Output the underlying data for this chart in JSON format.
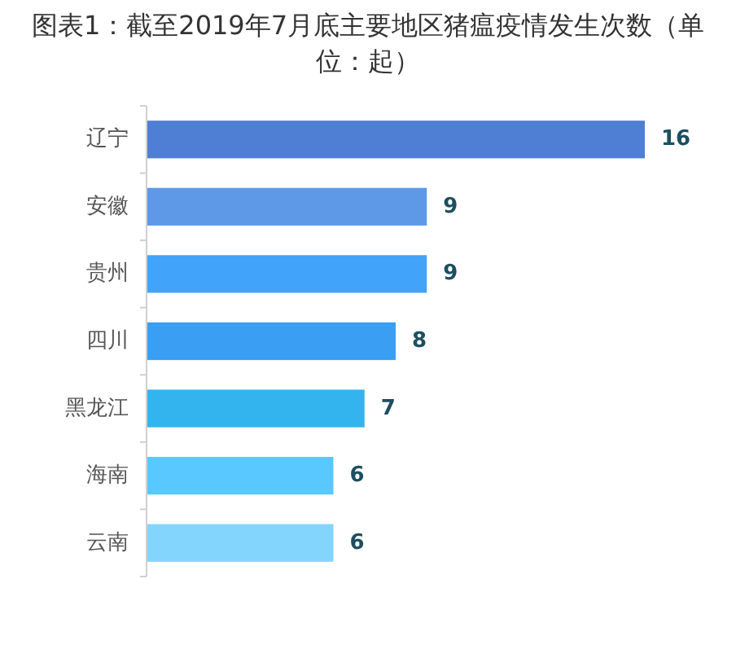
{
  "chart_data": {
    "type": "bar",
    "orientation": "horizontal",
    "title": "图表1：截至2019年7月底主要地区猪瘟疫情发生次数（单位：起）",
    "categories": [
      "辽宁",
      "安徽",
      "贵州",
      "四川",
      "黑龙江",
      "海南",
      "云南"
    ],
    "values": [
      16,
      9,
      9,
      8,
      7,
      6,
      6
    ],
    "colors": [
      "#4f7fd4",
      "#5e99e8",
      "#41a3fa",
      "#3a9ef2",
      "#33b4ee",
      "#59c8fe",
      "#84d5fd"
    ],
    "data_labels": true
  }
}
